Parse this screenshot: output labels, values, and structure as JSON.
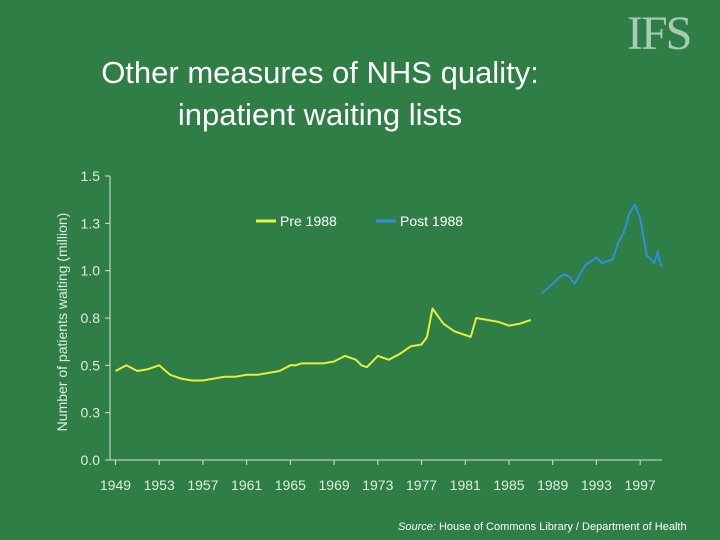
{
  "slide": {
    "title_line1": "Other measures of NHS quality:",
    "title_line2": "inpatient waiting lists",
    "logo_text": "IFS",
    "source_prefix": "Source:",
    "source_text": " House of Commons Library / Department of Health"
  },
  "colors": {
    "background": "#2f7e46",
    "axis": "#cfe6d6",
    "pre_series": "#e6f03a",
    "post_series": "#2e8fdc"
  },
  "chart_data": {
    "type": "line",
    "title": "",
    "xlabel": "",
    "ylabel": "Number of patients waiting (million)",
    "xlim": [
      1948.5,
      1999
    ],
    "ylim": [
      0,
      1.5
    ],
    "yticks": [
      "0.0",
      "0.3",
      "0.5",
      "0.8",
      "1.0",
      "1.3",
      "1.5"
    ],
    "xticks": [
      "1949",
      "1953",
      "1957",
      "1961",
      "1965",
      "1969",
      "1973",
      "1977",
      "1981",
      "1985",
      "1989",
      "1993",
      "1997"
    ],
    "legend": "top-center",
    "grid": false,
    "series": [
      {
        "name": "Pre 1988",
        "color": "#e6f03a",
        "x": [
          1949,
          1950,
          1951,
          1952,
          1953,
          1954,
          1955,
          1956,
          1957,
          1958,
          1959,
          1960,
          1961,
          1962,
          1963,
          1964,
          1965,
          1965.5,
          1966,
          1967,
          1968,
          1969,
          1970,
          1970.5,
          1971,
          1971.5,
          1972,
          1973,
          1974,
          1975,
          1976,
          1977,
          1977.5,
          1978,
          1979,
          1980,
          1981,
          1981.5,
          1982,
          1983,
          1984,
          1985,
          1986,
          1987
        ],
        "y": [
          0.47,
          0.5,
          0.47,
          0.48,
          0.5,
          0.45,
          0.43,
          0.42,
          0.42,
          0.43,
          0.44,
          0.44,
          0.45,
          0.45,
          0.46,
          0.47,
          0.5,
          0.5,
          0.51,
          0.51,
          0.51,
          0.52,
          0.55,
          0.54,
          0.53,
          0.5,
          0.49,
          0.55,
          0.53,
          0.56,
          0.6,
          0.61,
          0.65,
          0.8,
          0.72,
          0.68,
          0.66,
          0.65,
          0.75,
          0.74,
          0.73,
          0.71,
          0.72,
          0.74
        ]
      },
      {
        "name": "Post 1988",
        "color": "#2e8fdc",
        "x": [
          1988,
          1989,
          1989.5,
          1990,
          1990.5,
          1991,
          1991.5,
          1992,
          1992.5,
          1993,
          1993.5,
          1994,
          1994.5,
          1995,
          1995.5,
          1996,
          1996.5,
          1997,
          1997.3,
          1997.6,
          1998,
          1998.3,
          1998.6,
          1998.8,
          1999
        ],
        "y": [
          0.88,
          0.93,
          0.96,
          0.98,
          0.97,
          0.93,
          0.98,
          1.03,
          1.05,
          1.07,
          1.04,
          1.05,
          1.06,
          1.15,
          1.2,
          1.3,
          1.35,
          1.28,
          1.18,
          1.08,
          1.06,
          1.04,
          1.1,
          1.05,
          1.02
        ]
      }
    ]
  }
}
